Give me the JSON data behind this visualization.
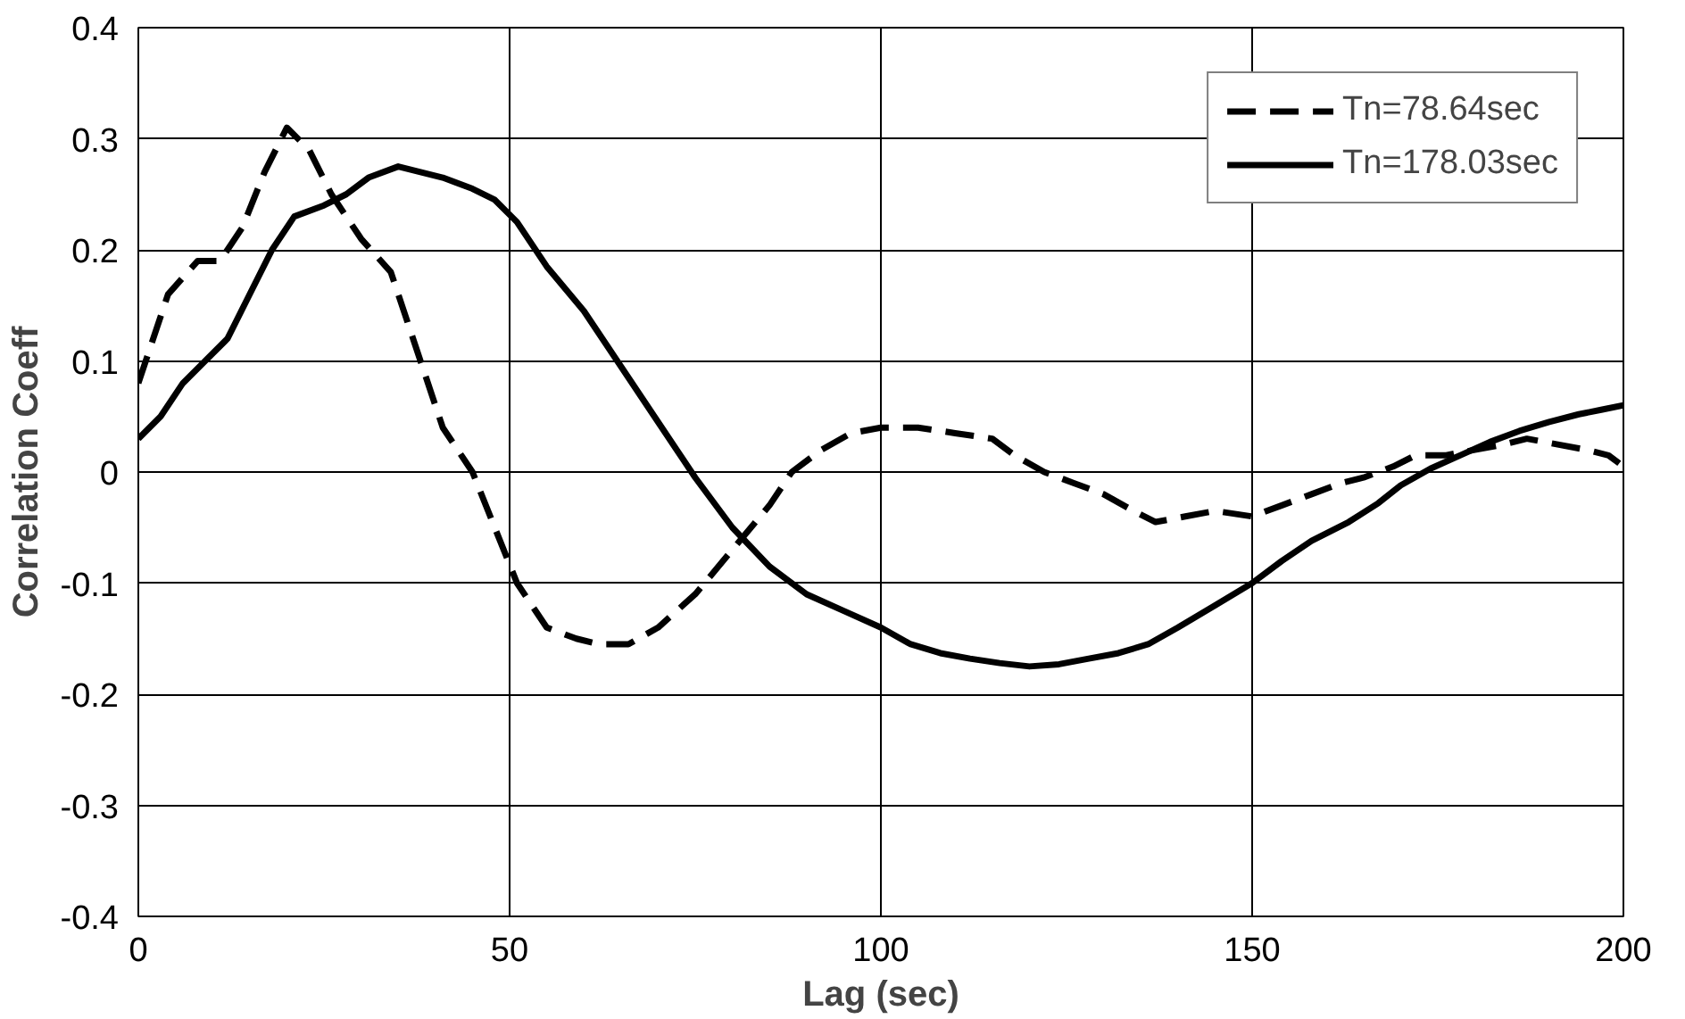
{
  "chart_data": {
    "type": "line",
    "xlabel": "Lag (sec)",
    "ylabel": "Correlation Coeff",
    "xlim": [
      0,
      200
    ],
    "ylim": [
      -0.4,
      0.4
    ],
    "xticks": [
      0,
      50,
      100,
      150,
      200
    ],
    "yticks": [
      -0.4,
      -0.3,
      -0.2,
      -0.1,
      0,
      0.1,
      0.2,
      0.3,
      0.4
    ],
    "grid": true,
    "legend": "top right",
    "marker": "none",
    "series": [
      {
        "name": "Tn=78.64sec",
        "color": "#000000",
        "line_style": "dashed",
        "x": [
          0,
          4,
          8,
          11,
          14,
          17,
          20,
          23,
          26,
          30,
          34,
          37,
          41,
          45,
          48,
          51,
          55,
          59,
          62,
          66,
          70,
          75,
          80,
          85,
          88,
          92,
          96,
          100,
          105,
          110,
          115,
          118,
          122,
          126,
          130,
          134,
          137,
          141,
          145,
          150,
          154,
          158,
          162,
          165,
          169,
          172,
          176,
          180,
          184,
          187,
          191,
          195,
          198,
          200
        ],
        "values": [
          0.08,
          0.16,
          0.19,
          0.19,
          0.22,
          0.27,
          0.31,
          0.29,
          0.25,
          0.21,
          0.18,
          0.12,
          0.04,
          0.0,
          -0.05,
          -0.1,
          -0.14,
          -0.15,
          -0.155,
          -0.155,
          -0.14,
          -0.11,
          -0.07,
          -0.03,
          0.0,
          0.02,
          0.035,
          0.04,
          0.04,
          0.035,
          0.03,
          0.015,
          0.0,
          -0.01,
          -0.02,
          -0.035,
          -0.045,
          -0.04,
          -0.035,
          -0.04,
          -0.03,
          -0.02,
          -0.01,
          -0.005,
          0.005,
          0.015,
          0.015,
          0.02,
          0.025,
          0.03,
          0.025,
          0.02,
          0.015,
          0.005
        ]
      },
      {
        "name": "Tn=178.03sec",
        "color": "#000000",
        "line_style": "solid",
        "x": [
          0,
          3,
          6,
          9,
          12,
          15,
          18,
          21,
          25,
          28,
          31,
          35,
          38,
          41,
          45,
          48,
          51,
          55,
          60,
          65,
          70,
          75,
          80,
          85,
          90,
          95,
          100,
          104,
          108,
          112,
          116,
          120,
          124,
          128,
          132,
          136,
          140,
          145,
          150,
          154,
          158,
          163,
          167,
          170,
          174,
          178,
          182,
          186,
          190,
          194,
          197,
          200
        ],
        "values": [
          0.03,
          0.05,
          0.08,
          0.1,
          0.12,
          0.16,
          0.2,
          0.23,
          0.24,
          0.25,
          0.265,
          0.275,
          0.27,
          0.265,
          0.255,
          0.245,
          0.225,
          0.185,
          0.145,
          0.095,
          0.045,
          -0.005,
          -0.05,
          -0.085,
          -0.11,
          -0.125,
          -0.14,
          -0.155,
          -0.163,
          -0.168,
          -0.172,
          -0.175,
          -0.173,
          -0.168,
          -0.163,
          -0.155,
          -0.14,
          -0.12,
          -0.1,
          -0.08,
          -0.062,
          -0.045,
          -0.028,
          -0.012,
          0.003,
          0.015,
          0.027,
          0.037,
          0.045,
          0.052,
          0.056,
          0.06
        ]
      }
    ]
  }
}
